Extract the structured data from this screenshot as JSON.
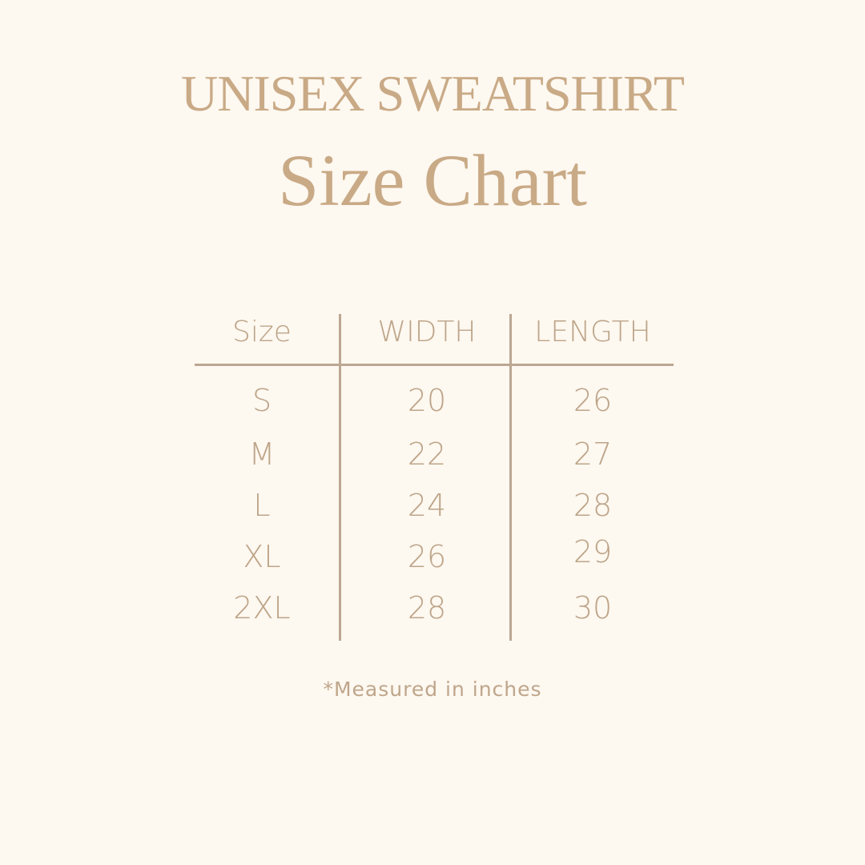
{
  "title": {
    "line1": "UNISEX SWEATSHIRT",
    "line2": "Size Chart"
  },
  "table": {
    "headers": [
      "Size",
      "WIDTH",
      "LENGTH"
    ],
    "rows": [
      [
        "S",
        "20",
        "26"
      ],
      [
        "M",
        "22",
        "27"
      ],
      [
        "L",
        "24",
        "28"
      ],
      [
        "XL",
        "26",
        "29"
      ],
      [
        "2XL",
        "28",
        "30"
      ]
    ]
  },
  "note": "*Measured in inches",
  "colors": {
    "background": "#fdf8f0",
    "text": "#bda488",
    "title": "#c9aa86",
    "lines": "#bca792"
  }
}
